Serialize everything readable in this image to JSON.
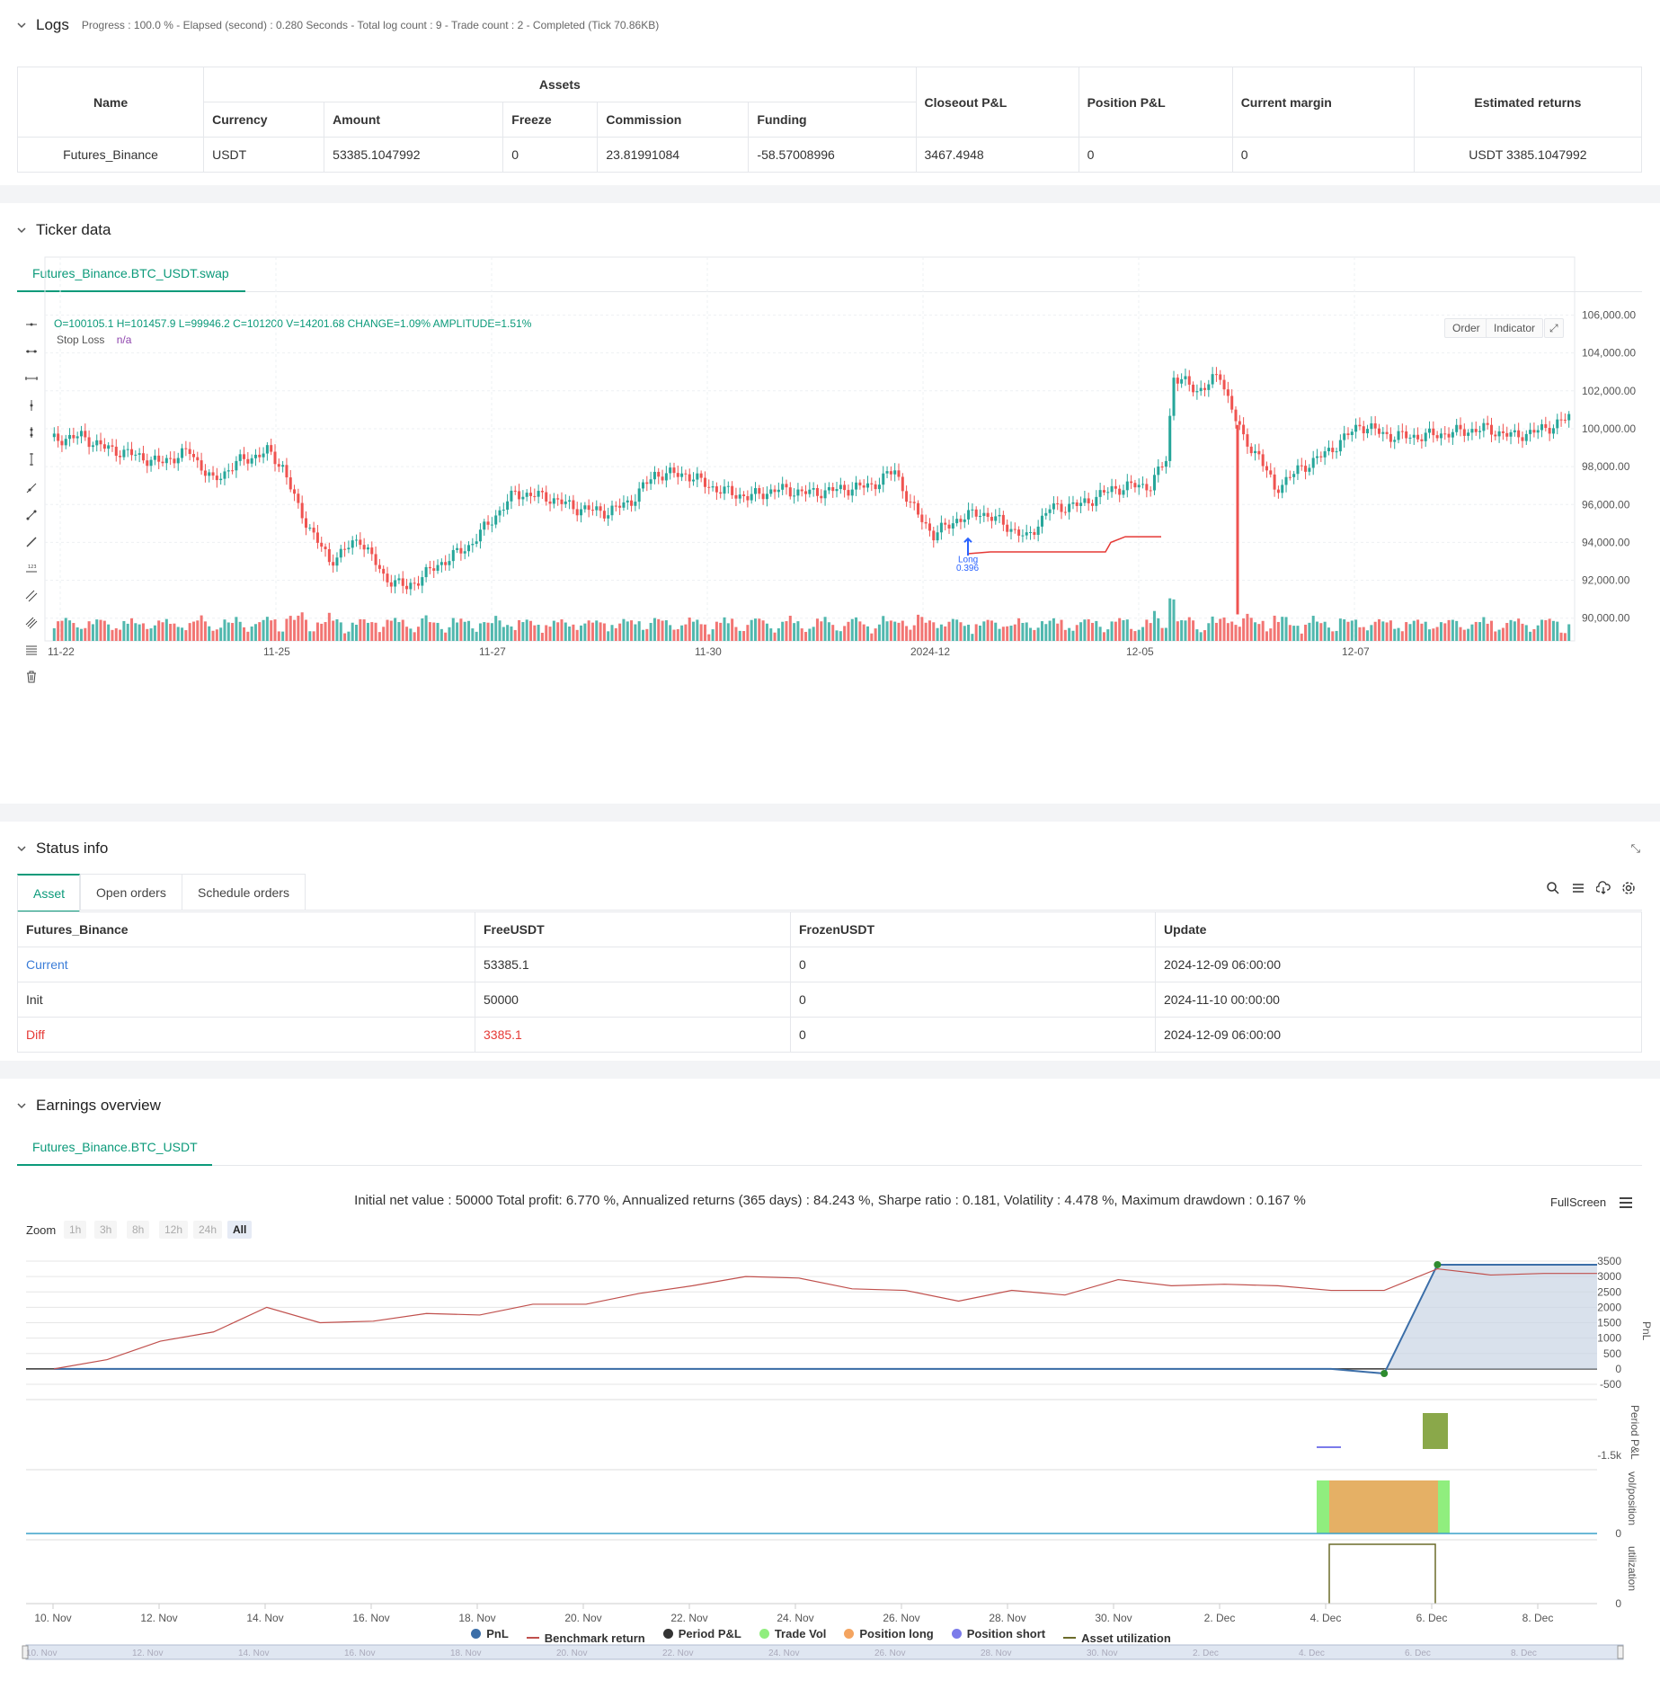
{
  "logs": {
    "title": "Logs",
    "summary": "Progress : 100.0 % - Elapsed (second) : 0.280  Seconds - Total log count : 9 - Trade count : 2 - Completed (Tick 70.86KB)",
    "headers": {
      "name": "Name",
      "assets": "Assets",
      "currency": "Currency",
      "amount": "Amount",
      "freeze": "Freeze",
      "commission": "Commission",
      "funding": "Funding",
      "closeout": "Closeout P&L",
      "position": "Position P&L",
      "margin": "Current margin",
      "returns": "Estimated returns"
    },
    "row": {
      "name": "Futures_Binance",
      "currency": "USDT",
      "amount": "53385.1047992",
      "freeze": "0",
      "commission": "23.81991084",
      "funding": "-58.57008996",
      "closeout": "3467.4948",
      "position": "0",
      "margin": "0",
      "returns": "USDT 3385.1047992"
    }
  },
  "ticker": {
    "title": "Ticker data",
    "tab": "Futures_Binance.BTC_USDT.swap",
    "ohlc": "O=100105.1 H=101457.9 L=99946.2 C=101200 V=14201.68 CHANGE=1.09% AMPLITUDE=1.51%",
    "stop_loss_label": "Stop Loss",
    "stop_loss_value": "n/a",
    "order_btn": "Order",
    "indicator_btn": "Indicator",
    "long_label": "Long",
    "long_value": "0.396",
    "y_ticks": [
      "106,000.00",
      "104,000.00",
      "102,000.00",
      "100,000.00",
      "98,000.00",
      "96,000.00",
      "94,000.00",
      "92,000.00",
      "90,000.00"
    ],
    "x_ticks": [
      "11-22",
      "11-25",
      "11-27",
      "11-30",
      "2024-12",
      "12-05",
      "12-07"
    ],
    "colors": {
      "up": "#26a69a",
      "down": "#ef5350",
      "stop": "#e53935"
    }
  },
  "status": {
    "title": "Status info",
    "tabs": [
      "Asset",
      "Open orders",
      "Schedule orders"
    ],
    "headers": [
      "Futures_Binance",
      "FreeUSDT",
      "FrozenUSDT",
      "Update"
    ],
    "rows": [
      [
        "Current",
        "53385.1",
        "0",
        "2024-12-09 06:00:00"
      ],
      [
        "Init",
        "50000",
        "0",
        "2024-11-10 00:00:00"
      ],
      [
        "Diff",
        "3385.1",
        "0",
        "2024-12-09 06:00:00"
      ]
    ]
  },
  "earnings": {
    "title": "Earnings overview",
    "tab": "Futures_Binance.BTC_USDT",
    "summary": "Initial net value : 50000 Total profit: 6.770 %, Annualized returns (365 days) : 84.243 %, Sharpe ratio : 0.181, Volatility : 4.478 %, Maximum drawdown : 0.167 %",
    "fullscreen": "FullScreen",
    "zoom_label": "Zoom",
    "zoom_options": [
      "1h",
      "3h",
      "8h",
      "12h",
      "24h",
      "All"
    ],
    "pnl_ticks": [
      "3500",
      "3000",
      "2500",
      "2000",
      "1500",
      "1000",
      "500",
      "0",
      "-500"
    ],
    "axis_titles": [
      "PnL",
      "Period P&L",
      "vol/position",
      "utilization"
    ],
    "period_tick": "-1.5k",
    "zero_tick": "0",
    "x_ticks": [
      "10. Nov",
      "12. Nov",
      "14. Nov",
      "16. Nov",
      "18. Nov",
      "20. Nov",
      "22. Nov",
      "24. Nov",
      "26. Nov",
      "28. Nov",
      "30. Nov",
      "2. Dec",
      "4. Dec",
      "6. Dec",
      "8. Dec"
    ],
    "legend": [
      {
        "label": "PnL",
        "color": "#3b6ea8",
        "shape": "dot"
      },
      {
        "label": "Benchmark return",
        "color": "#c0504d",
        "shape": "line"
      },
      {
        "label": "Period P&L",
        "color": "#333333",
        "shape": "dot"
      },
      {
        "label": "Trade Vol",
        "color": "#90ee7e",
        "shape": "dot"
      },
      {
        "label": "Position long",
        "color": "#f4a460",
        "shape": "dot"
      },
      {
        "label": "Position short",
        "color": "#7b7bea",
        "shape": "dot"
      },
      {
        "label": "Asset utilization",
        "color": "#6b6b2a",
        "shape": "line"
      }
    ]
  },
  "chart_data": [
    {
      "type": "line",
      "title": "",
      "x": [
        "11-10",
        "11-11",
        "11-12",
        "11-13",
        "11-14",
        "11-15",
        "11-16",
        "11-17",
        "11-18",
        "11-19",
        "11-20",
        "11-21",
        "11-22",
        "11-23",
        "11-24",
        "11-25",
        "11-26",
        "11-27",
        "11-28",
        "11-29",
        "11-30",
        "12-01",
        "12-02",
        "12-03",
        "12-04",
        "12-05",
        "12-06",
        "12-07",
        "12-08",
        "12-09"
      ],
      "series": [
        {
          "name": "Benchmark return",
          "values": [
            0,
            300,
            900,
            1200,
            2000,
            1500,
            1550,
            1800,
            1750,
            2100,
            2100,
            2450,
            2700,
            3000,
            2950,
            2600,
            2550,
            2200,
            2550,
            2400,
            2900,
            2700,
            2750,
            2700,
            2550,
            2550,
            3250,
            3050,
            3100,
            3100
          ]
        },
        {
          "name": "PnL",
          "values": [
            0,
            0,
            0,
            0,
            0,
            0,
            0,
            0,
            0,
            0,
            0,
            0,
            0,
            0,
            0,
            0,
            0,
            0,
            0,
            0,
            0,
            0,
            0,
            0,
            0,
            -150,
            3385,
            3385,
            3385,
            3385
          ]
        }
      ],
      "ylim": [
        -500,
        3500
      ]
    }
  ]
}
